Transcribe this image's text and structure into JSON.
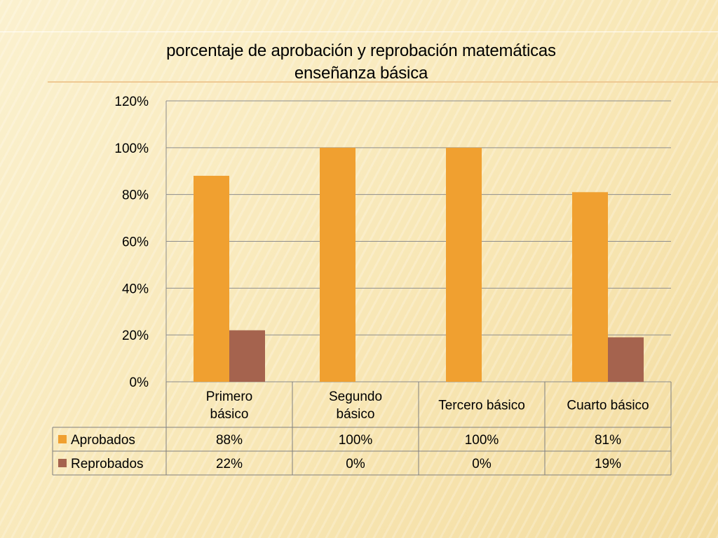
{
  "colors": {
    "aprobados": "#f0a030",
    "reprobados": "#a5634e",
    "grid": "#8c8c8c"
  },
  "chart_data": {
    "type": "bar",
    "title": [
      "porcentaje de aprobación y reprobación matemáticas",
      "enseñanza básica"
    ],
    "categories": [
      [
        "Primero",
        "básico"
      ],
      [
        "Segundo",
        "básico"
      ],
      [
        "Tercero básico"
      ],
      [
        "Cuarto básico"
      ]
    ],
    "series": [
      {
        "name": "Aprobados",
        "values": [
          0.88,
          1.0,
          1.0,
          0.81
        ],
        "labels": [
          "88%",
          "100%",
          "100%",
          "81%"
        ]
      },
      {
        "name": "Reprobados",
        "values": [
          0.22,
          0.0,
          0.0,
          0.19
        ],
        "labels": [
          "22%",
          "0%",
          "0%",
          "19%"
        ]
      }
    ],
    "ylim": [
      0,
      1.2
    ],
    "yticks": [
      "0%",
      "20%",
      "40%",
      "60%",
      "80%",
      "100%",
      "120%"
    ],
    "grid": true,
    "legend": "data-table"
  }
}
